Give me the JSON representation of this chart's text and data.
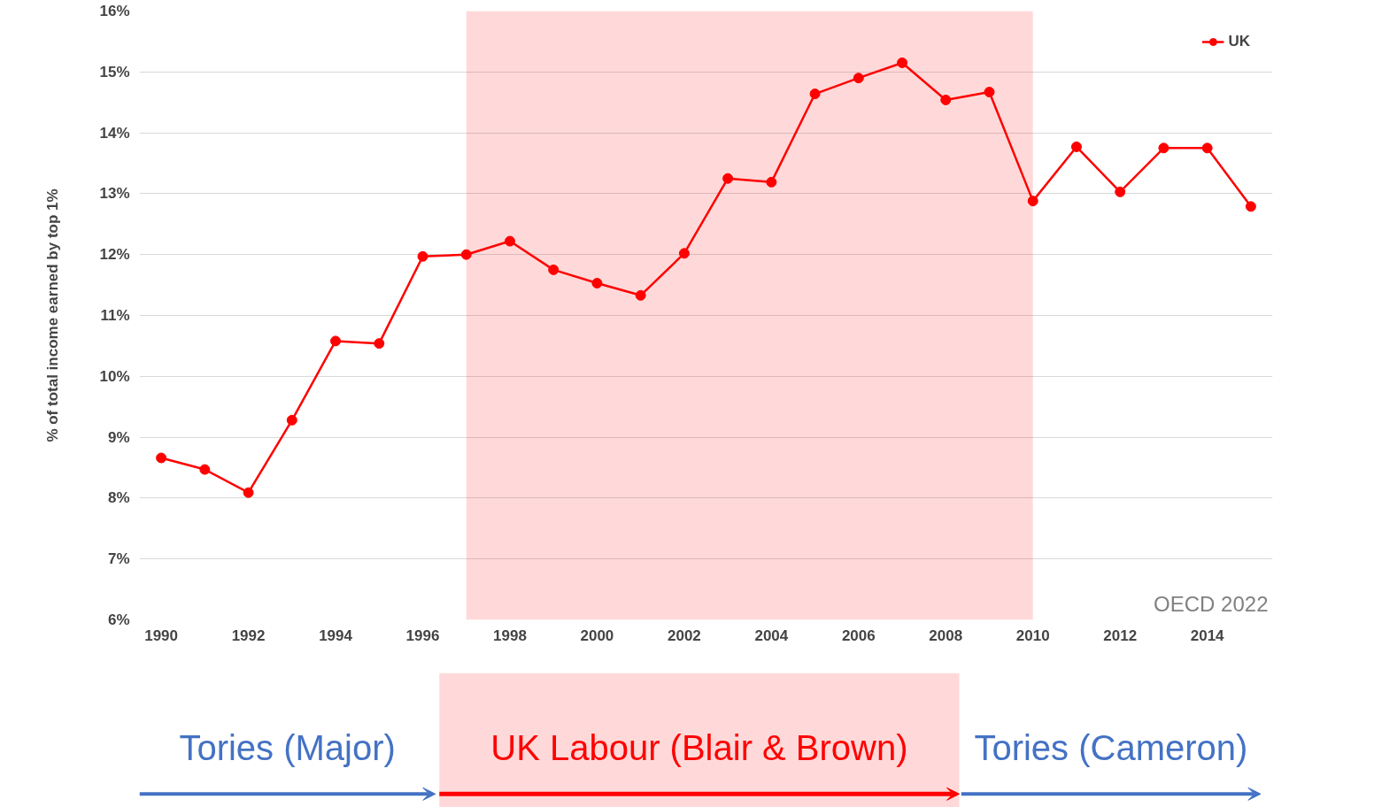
{
  "chart_data": {
    "type": "line",
    "ylabel": "% of total income earned by top 1%",
    "x": [
      1990,
      1991,
      1992,
      1993,
      1994,
      1995,
      1996,
      1997,
      1998,
      1999,
      2000,
      2001,
      2002,
      2003,
      2004,
      2005,
      2006,
      2007,
      2008,
      2009,
      2010,
      2011,
      2012,
      2013,
      2014,
      2015
    ],
    "series": [
      {
        "name": "UK",
        "color": "#ff0000",
        "values": [
          8.66,
          8.47,
          8.09,
          9.28,
          10.58,
          10.54,
          11.97,
          12.0,
          12.22,
          11.75,
          11.53,
          11.33,
          12.02,
          13.25,
          13.19,
          14.64,
          14.9,
          15.15,
          14.54,
          14.67,
          12.88,
          13.77,
          13.03,
          13.75,
          13.75,
          12.79
        ]
      }
    ],
    "xlim": [
      1989.5,
      2015.5
    ],
    "xticks": [
      1990,
      1992,
      1994,
      1996,
      1998,
      2000,
      2002,
      2004,
      2006,
      2008,
      2010,
      2012,
      2014
    ],
    "ylim": [
      6,
      16
    ],
    "yticks": [
      {
        "value": 6,
        "label": "6%"
      },
      {
        "value": 7,
        "label": "7%"
      },
      {
        "value": 8,
        "label": "8%"
      },
      {
        "value": 9,
        "label": "9%"
      },
      {
        "value": 10,
        "label": "10%"
      },
      {
        "value": 11,
        "label": "11%"
      },
      {
        "value": 12,
        "label": "12%"
      },
      {
        "value": 13,
        "label": "13%"
      },
      {
        "value": 14,
        "label": "14%"
      },
      {
        "value": 15,
        "label": "15%"
      },
      {
        "value": 16,
        "label": "16%"
      }
    ],
    "bands": [
      {
        "axis": "x",
        "from": 1997,
        "to": 2010,
        "label": "UK Labour (Blair & Brown)",
        "color": "#ff0000"
      }
    ],
    "annotations": [
      "OECD 2022",
      "Tories (Major)",
      "Tories (Cameron)"
    ],
    "grid": "y",
    "legend": "top right",
    "marker": "circle",
    "line_style": "solid"
  }
}
